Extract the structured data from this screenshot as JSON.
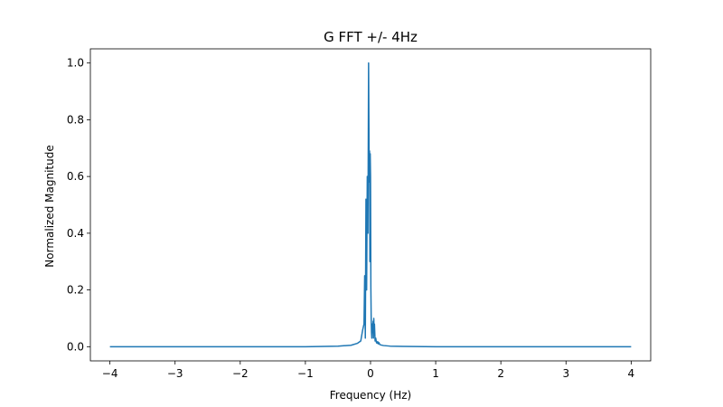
{
  "chart_data": {
    "type": "line",
    "title": "G FFT +/- 4Hz",
    "xlabel": "Frequency (Hz)",
    "ylabel": "Normalized Magnitude",
    "xlim": [
      -4.3,
      4.3
    ],
    "ylim": [
      -0.05,
      1.05
    ],
    "xticks": [
      -4,
      -3,
      -2,
      -1,
      0,
      1,
      2,
      3,
      4
    ],
    "xtick_labels": [
      "−4",
      "−3",
      "−2",
      "−1",
      "0",
      "1",
      "2",
      "3",
      "4"
    ],
    "yticks": [
      0.0,
      0.2,
      0.4,
      0.6,
      0.8,
      1.0
    ],
    "ytick_labels": [
      "0.0",
      "0.2",
      "0.4",
      "0.6",
      "0.8",
      "1.0"
    ],
    "grid": false,
    "series": [
      {
        "color": "#1f77b4",
        "x": [
          -4.0,
          -3.0,
          -2.0,
          -1.0,
          -0.5,
          -0.3,
          -0.2,
          -0.15,
          -0.12,
          -0.1,
          -0.09,
          -0.08,
          -0.07,
          -0.06,
          -0.05,
          -0.04,
          -0.03,
          -0.02,
          -0.015,
          -0.01,
          -0.005,
          0.0,
          0.005,
          0.01,
          0.015,
          0.02,
          0.025,
          0.03,
          0.035,
          0.04,
          0.045,
          0.05,
          0.055,
          0.06,
          0.07,
          0.08,
          0.09,
          0.1,
          0.11,
          0.12,
          0.13,
          0.14,
          0.16,
          0.2,
          0.3,
          0.5,
          1.0,
          2.0,
          3.0,
          4.0
        ],
        "y": [
          0.0,
          0.0,
          0.0,
          0.0,
          0.002,
          0.005,
          0.012,
          0.02,
          0.06,
          0.08,
          0.25,
          0.03,
          0.52,
          0.2,
          0.6,
          0.4,
          1.0,
          0.58,
          0.69,
          0.3,
          0.68,
          0.6,
          0.21,
          0.1,
          0.05,
          0.03,
          0.08,
          0.05,
          0.07,
          0.09,
          0.03,
          0.1,
          0.04,
          0.08,
          0.02,
          0.03,
          0.015,
          0.012,
          0.018,
          0.01,
          0.014,
          0.008,
          0.006,
          0.004,
          0.002,
          0.001,
          0.0,
          0.0,
          0.0,
          0.0
        ]
      }
    ]
  }
}
